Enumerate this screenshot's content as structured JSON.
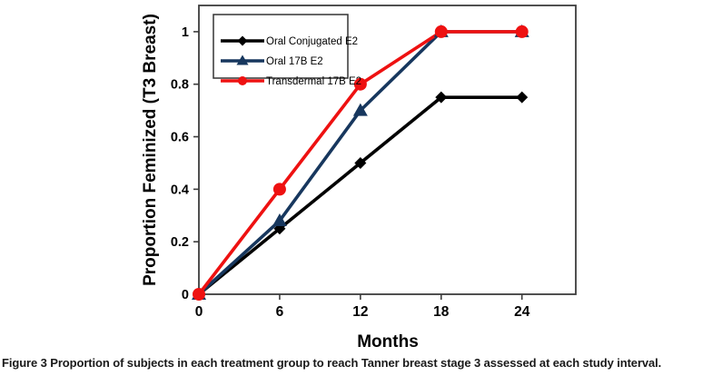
{
  "figure": {
    "caption_label": "Figure 3",
    "caption_text": "Proportion of subjects in each treatment group to reach Tanner breast stage 3 assessed at each study interval."
  },
  "chart_data": {
    "type": "line",
    "title": "",
    "xlabel": "Months",
    "ylabel": "Proportion Feminized (T3 Breast)",
    "x": [
      0,
      6,
      12,
      18,
      24
    ],
    "xlim": [
      0,
      28
    ],
    "ylim": [
      0,
      1.1
    ],
    "xticks": [
      0,
      6,
      12,
      18,
      24
    ],
    "xtick_labels": [
      "0",
      "6",
      "12",
      "18",
      "24"
    ],
    "yticks": [
      0,
      0.2,
      0.4,
      0.6,
      0.8,
      1
    ],
    "ytick_labels": [
      "0",
      "0.2",
      "0.4",
      "0.6",
      "0.8",
      "1"
    ],
    "grid": false,
    "legend_position": "top-left-inside",
    "series": [
      {
        "name": "Oral Conjugated E2",
        "color": "#000000",
        "marker": "diamond",
        "values": [
          0,
          0.25,
          0.5,
          0.75,
          0.75
        ]
      },
      {
        "name": "Oral 17B E2",
        "color": "#17375E",
        "marker": "triangle",
        "values": [
          0,
          0.28,
          0.7,
          1,
          1
        ]
      },
      {
        "name": "Transdermal 17B E2",
        "color": "#EE1111",
        "marker": "circle",
        "values": [
          0,
          0.4,
          0.8,
          1,
          1
        ]
      }
    ],
    "colors": {
      "axis": "#3d3d3d",
      "text": "#000000",
      "plot_bg": "#ffffff"
    }
  }
}
